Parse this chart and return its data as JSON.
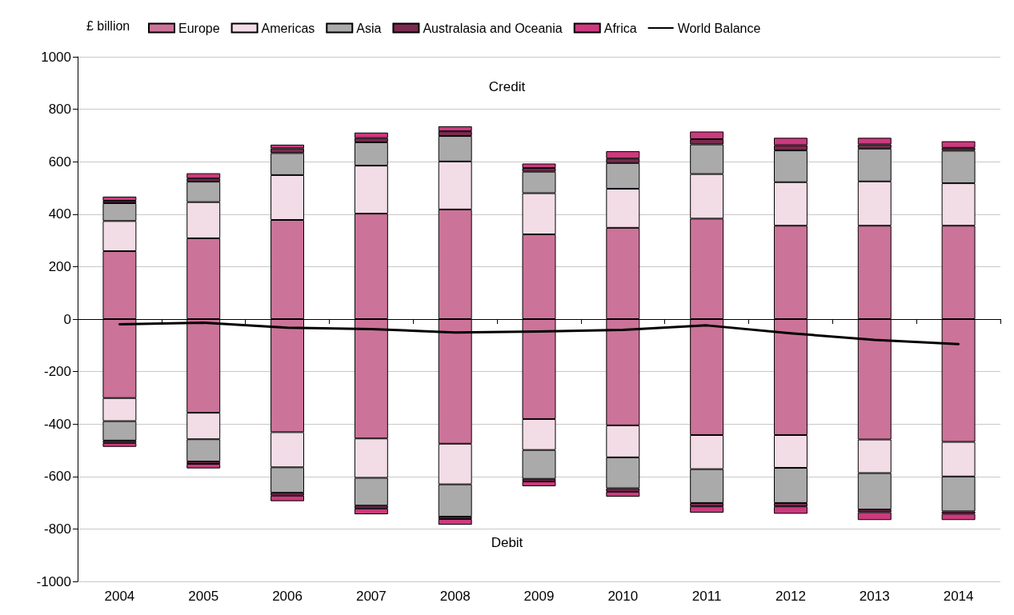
{
  "chart_data": {
    "type": "bar",
    "stacked": true,
    "ylabel": "£ billion",
    "categories": [
      "2004",
      "2005",
      "2006",
      "2007",
      "2008",
      "2009",
      "2010",
      "2011",
      "2012",
      "2013",
      "2014"
    ],
    "ylim": [
      -1000,
      1000
    ],
    "yticks": [
      -1000,
      -800,
      -600,
      -400,
      -200,
      0,
      200,
      400,
      600,
      800,
      1000
    ],
    "grid": "y",
    "legend": "top",
    "marker": "none",
    "annotations": [
      "Credit",
      "Debit"
    ],
    "ref_lines": [
      {
        "axis": "y",
        "value": 0,
        "color": "#000000"
      }
    ],
    "series": [
      {
        "name": "Europe",
        "color": "#cc7399",
        "values": [
          259,
          308,
          378,
          402,
          418,
          323,
          348,
          383,
          356,
          356,
          356
        ]
      },
      {
        "name": "Americas",
        "color": "#f2dce5",
        "values": [
          115,
          138,
          171,
          183,
          183,
          157,
          149,
          170,
          166,
          169,
          162
        ]
      },
      {
        "name": "Asia",
        "color": "#aaaaaa",
        "values": [
          68,
          78,
          84,
          89,
          97,
          82,
          98,
          113,
          121,
          125,
          124
        ]
      },
      {
        "name": "Australasia and Oceania",
        "color": "#7a2a4f",
        "values": [
          9,
          12,
          18,
          16,
          18,
          14,
          17,
          20,
          20,
          16,
          11
        ]
      },
      {
        "name": "Africa",
        "color": "#cc3a7e",
        "values": [
          16,
          20,
          14,
          21,
          19,
          17,
          28,
          29,
          28,
          25,
          25
        ]
      },
      {
        "color": "#cc7399",
        "values": [
          -301,
          -357,
          -431,
          -455,
          -475,
          -381,
          -405,
          -442,
          -442,
          -459,
          -468
        ]
      },
      {
        "color": "#f2dce5",
        "values": [
          -88,
          -101,
          -134,
          -150,
          -155,
          -118,
          -122,
          -130,
          -125,
          -128,
          -132
        ]
      },
      {
        "color": "#aaaaaa",
        "values": [
          -74,
          -85,
          -97,
          -106,
          -123,
          -110,
          -118,
          -129,
          -134,
          -139,
          -133
        ]
      },
      {
        "color": "#7a2a4f",
        "values": [
          -9,
          -9,
          -11,
          -11,
          -9,
          -10,
          -13,
          -13,
          -13,
          -10,
          -9
        ]
      },
      {
        "color": "#cc3a7e",
        "values": [
          -15,
          -17,
          -21,
          -22,
          -22,
          -18,
          -19,
          -24,
          -28,
          -30,
          -24
        ]
      },
      {
        "name": "World Balance",
        "type": "line",
        "color": "#000000",
        "values": [
          -20,
          -14,
          -33,
          -38,
          -51,
          -47,
          -41,
          -24,
          -54,
          -79,
          -95
        ]
      }
    ]
  }
}
